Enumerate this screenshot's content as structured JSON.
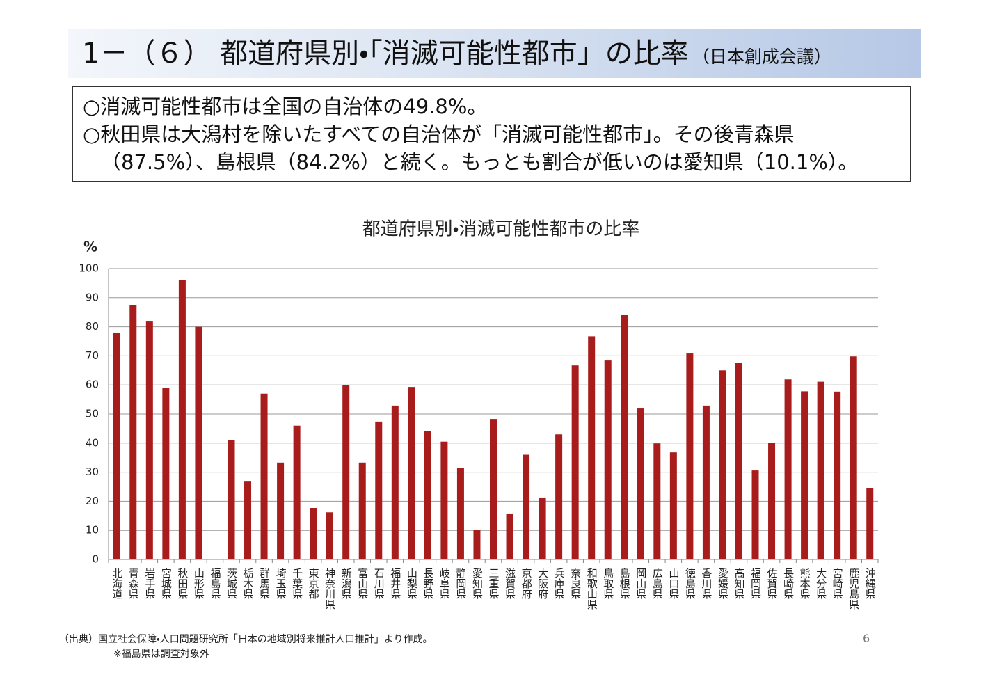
{
  "header": {
    "title": "1－（６） 都道府県別・「消滅可能性都市」の比率",
    "subtitle": "（日本創成会議）"
  },
  "summary": {
    "lines": [
      "○消滅可能性都市は全国の自治体の49.8%。",
      "○秋田県は大潟村を除いたすべての自治体が「消滅可能性都市」。その後青森県",
      "（87.5%）、島根県（84.2%）と続く。もっとも割合が低いのは愛知県（10.1%）。"
    ]
  },
  "chart_data": {
    "type": "bar",
    "title": "都道府県別・消滅可能性都市の比率",
    "y_label": "%",
    "categories": [
      "北海道",
      "青森県",
      "岩手県",
      "宮城県",
      "秋田県",
      "山形県",
      "福島県",
      "茨城県",
      "栃木県",
      "群馬県",
      "埼玉県",
      "千葉県",
      "東京都",
      "神奈川県",
      "新潟県",
      "富山県",
      "石川県",
      "福井県",
      "山梨県",
      "長野県",
      "岐阜県",
      "静岡県",
      "愛知県",
      "三重県",
      "滋賀県",
      "京都府",
      "大阪府",
      "兵庫県",
      "奈良県",
      "和歌山県",
      "鳥取県",
      "島根県",
      "岡山県",
      "広島県",
      "山口県",
      "徳島県",
      "香川県",
      "愛媛県",
      "高知県",
      "福岡県",
      "佐賀県",
      "長崎県",
      "熊本県",
      "大分県",
      "宮崎県",
      "鹿児島県",
      "沖縄県"
    ],
    "values": [
      78,
      87.5,
      81.8,
      59,
      96,
      80,
      null,
      41,
      27,
      57,
      33.3,
      46,
      17.7,
      16.2,
      60,
      33.3,
      47.4,
      52.9,
      59.3,
      44.2,
      40.5,
      31.4,
      10.1,
      48.3,
      15.8,
      36,
      21.3,
      43,
      66.7,
      76.7,
      68.4,
      84.2,
      51.9,
      39.9,
      36.8,
      70.8,
      52.9,
      65,
      67.6,
      30.6,
      40,
      61.9,
      57.8,
      61.1,
      57.7,
      69.8,
      24.4
    ],
    "color": "#a81c1c",
    "ylim": [
      0,
      100
    ],
    "yticks": [
      0,
      10,
      20,
      30,
      40,
      50,
      60,
      70,
      80,
      90,
      100
    ],
    "grid": true
  },
  "footer": {
    "source": "（出典）国立社会保障・人口問題研究所「日本の地域別将来推計人口推計」より作成。",
    "note": "※福島県は調査対象外",
    "page": "6"
  }
}
